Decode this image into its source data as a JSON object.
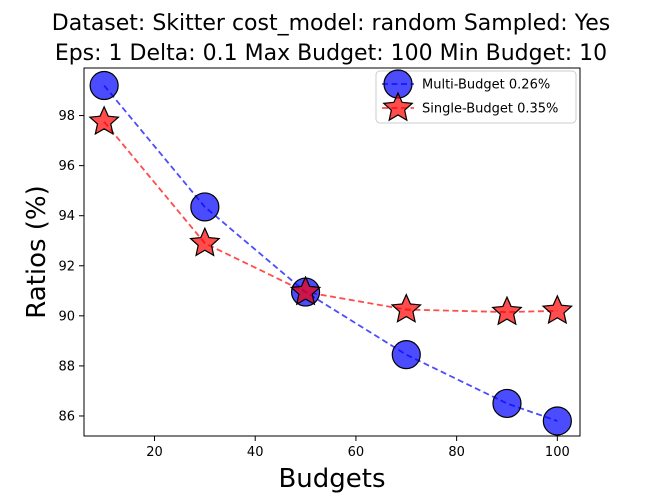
{
  "chart_data": {
    "type": "line",
    "title_lines": [
      "Dataset: Skitter cost_model: random Sampled: Yes",
      "Eps: 1 Delta: 0.1 Max Budget: 100 Min Budget: 10"
    ],
    "xlabel": "Budgets",
    "ylabel": "Ratios (%)",
    "xlim": [
      6,
      104.5
    ],
    "ylim": [
      85.2,
      99.9
    ],
    "xticks": [
      20,
      40,
      60,
      80,
      100
    ],
    "yticks": [
      86,
      88,
      90,
      92,
      94,
      96,
      98
    ],
    "grid": false,
    "legend_position": "top-right",
    "series": [
      {
        "name": "Multi-Budget 0.26%",
        "marker": "circle",
        "color": "#0000ff",
        "x": [
          10,
          30,
          50,
          70,
          90,
          100
        ],
        "values": [
          99.2,
          94.35,
          90.95,
          88.45,
          86.5,
          85.8
        ]
      },
      {
        "name": "Single-Budget 0.35%",
        "marker": "star",
        "color": "#ff0000",
        "x": [
          10,
          30,
          50,
          70,
          90,
          100
        ],
        "values": [
          97.75,
          92.9,
          90.95,
          90.25,
          90.15,
          90.2
        ]
      }
    ]
  }
}
